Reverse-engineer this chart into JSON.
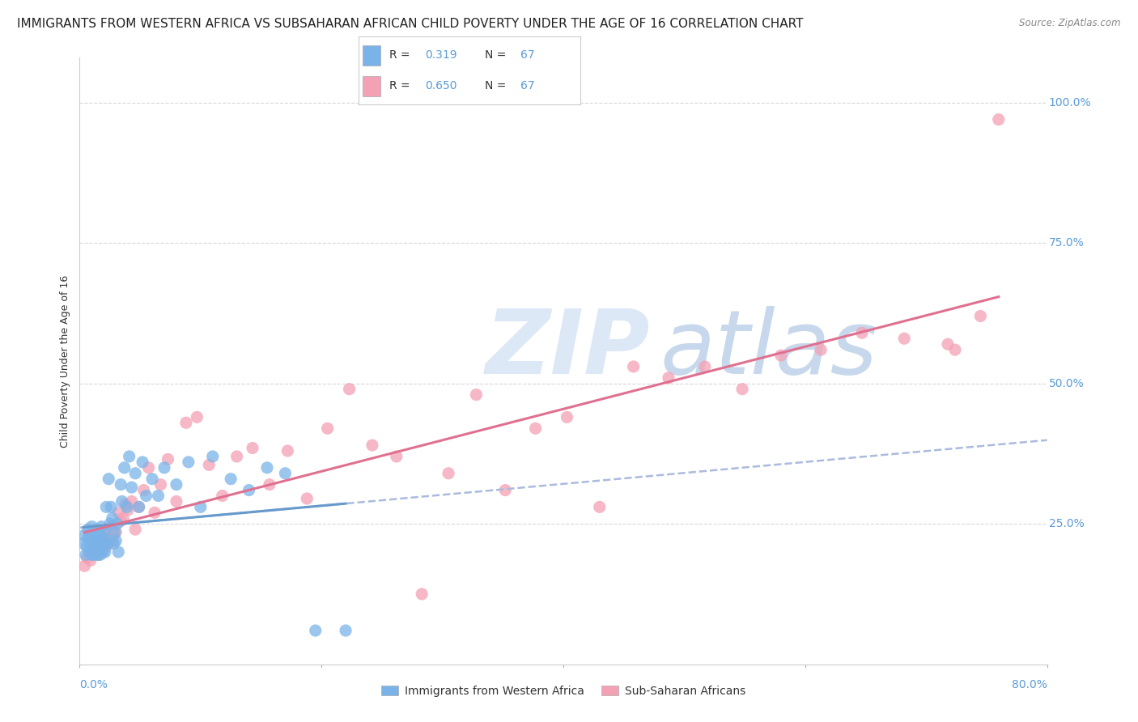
{
  "title": "IMMIGRANTS FROM WESTERN AFRICA VS SUBSAHARAN AFRICAN CHILD POVERTY UNDER THE AGE OF 16 CORRELATION CHART",
  "source": "Source: ZipAtlas.com",
  "ylabel": "Child Poverty Under the Age of 16",
  "ytick_labels": [
    "100.0%",
    "75.0%",
    "50.0%",
    "25.0%"
  ],
  "ytick_values": [
    1.0,
    0.75,
    0.5,
    0.25
  ],
  "legend_label1": "Immigrants from Western Africa",
  "legend_label2": "Sub-Saharan Africans",
  "R1": "0.319",
  "N1": "67",
  "R2": "0.650",
  "N2": "67",
  "color_blue": "#7ab3e8",
  "color_pink": "#f4a0b5",
  "color_blue_text": "#5b9bd5",
  "line_blue": "#6699cc",
  "line_pink": "#e07090",
  "line_dashed_color": "#aabbdd",
  "watermark_zip_color": "#dce8f5",
  "watermark_atlas_color": "#c8d8ec",
  "background": "#ffffff",
  "xmin": 0.0,
  "xmax": 0.8,
  "ymin": 0.0,
  "ymax": 1.08,
  "grid_color": "#d8d8d8",
  "title_fontsize": 11,
  "axis_label_fontsize": 9,
  "tick_fontsize": 10,
  "scatter_blue_x": [
    0.003,
    0.004,
    0.005,
    0.006,
    0.007,
    0.007,
    0.008,
    0.009,
    0.009,
    0.01,
    0.01,
    0.011,
    0.011,
    0.012,
    0.012,
    0.013,
    0.013,
    0.014,
    0.014,
    0.015,
    0.015,
    0.016,
    0.016,
    0.017,
    0.017,
    0.018,
    0.018,
    0.019,
    0.019,
    0.02,
    0.02,
    0.021,
    0.022,
    0.022,
    0.023,
    0.024,
    0.025,
    0.026,
    0.027,
    0.028,
    0.029,
    0.03,
    0.031,
    0.032,
    0.034,
    0.035,
    0.037,
    0.039,
    0.041,
    0.043,
    0.046,
    0.049,
    0.052,
    0.055,
    0.06,
    0.065,
    0.07,
    0.08,
    0.09,
    0.1,
    0.11,
    0.125,
    0.14,
    0.155,
    0.17,
    0.195,
    0.22
  ],
  "scatter_blue_y": [
    0.215,
    0.23,
    0.195,
    0.21,
    0.225,
    0.24,
    0.2,
    0.215,
    0.23,
    0.195,
    0.245,
    0.205,
    0.22,
    0.195,
    0.235,
    0.21,
    0.2,
    0.225,
    0.24,
    0.195,
    0.21,
    0.205,
    0.22,
    0.23,
    0.195,
    0.215,
    0.245,
    0.2,
    0.225,
    0.21,
    0.235,
    0.2,
    0.28,
    0.22,
    0.215,
    0.33,
    0.25,
    0.28,
    0.26,
    0.215,
    0.235,
    0.22,
    0.25,
    0.2,
    0.32,
    0.29,
    0.35,
    0.28,
    0.37,
    0.315,
    0.34,
    0.28,
    0.36,
    0.3,
    0.33,
    0.3,
    0.35,
    0.32,
    0.36,
    0.28,
    0.37,
    0.33,
    0.31,
    0.35,
    0.34,
    0.06,
    0.06
  ],
  "scatter_pink_x": [
    0.004,
    0.006,
    0.008,
    0.009,
    0.01,
    0.012,
    0.013,
    0.014,
    0.015,
    0.016,
    0.017,
    0.018,
    0.019,
    0.02,
    0.022,
    0.023,
    0.024,
    0.026,
    0.027,
    0.028,
    0.03,
    0.032,
    0.034,
    0.036,
    0.038,
    0.04,
    0.043,
    0.046,
    0.049,
    0.053,
    0.057,
    0.062,
    0.067,
    0.073,
    0.08,
    0.088,
    0.097,
    0.107,
    0.118,
    0.13,
    0.143,
    0.157,
    0.172,
    0.188,
    0.205,
    0.223,
    0.242,
    0.262,
    0.283,
    0.305,
    0.328,
    0.352,
    0.377,
    0.403,
    0.43,
    0.458,
    0.487,
    0.517,
    0.548,
    0.58,
    0.613,
    0.647,
    0.682,
    0.718,
    0.724,
    0.745,
    0.76
  ],
  "scatter_pink_y": [
    0.175,
    0.19,
    0.2,
    0.185,
    0.195,
    0.205,
    0.21,
    0.215,
    0.195,
    0.22,
    0.205,
    0.215,
    0.2,
    0.225,
    0.21,
    0.23,
    0.215,
    0.245,
    0.22,
    0.23,
    0.235,
    0.27,
    0.255,
    0.26,
    0.285,
    0.275,
    0.29,
    0.24,
    0.28,
    0.31,
    0.35,
    0.27,
    0.32,
    0.365,
    0.29,
    0.43,
    0.44,
    0.355,
    0.3,
    0.37,
    0.385,
    0.32,
    0.38,
    0.295,
    0.42,
    0.49,
    0.39,
    0.37,
    0.125,
    0.34,
    0.48,
    0.31,
    0.42,
    0.44,
    0.28,
    0.53,
    0.51,
    0.53,
    0.49,
    0.55,
    0.56,
    0.59,
    0.58,
    0.57,
    0.56,
    0.62,
    0.97
  ],
  "rline_blue_x0": 0.003,
  "rline_blue_x1": 0.22,
  "rline_pink_x0": 0.004,
  "rline_pink_x1": 0.76
}
